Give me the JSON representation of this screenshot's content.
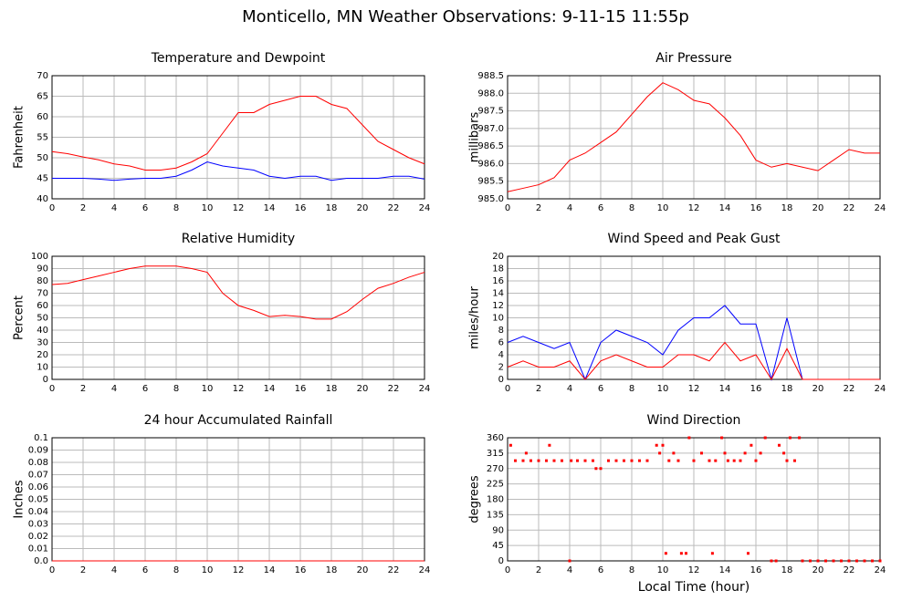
{
  "title": "Monticello, MN Weather Observations: 9-11-15 11:55p",
  "chart_data": [
    {
      "type": "line",
      "title": "Temperature and Dewpoint",
      "ylabel": "Fahrenheit",
      "x": [
        0,
        1,
        2,
        3,
        4,
        5,
        6,
        7,
        8,
        9,
        10,
        11,
        12,
        13,
        14,
        15,
        16,
        17,
        18,
        19,
        20,
        21,
        22,
        23,
        24
      ],
      "series": [
        {
          "color": "#ff0000",
          "values": [
            51.5,
            51,
            50.2,
            49.5,
            48.5,
            48,
            47,
            47,
            47.5,
            49,
            51,
            56,
            61,
            61,
            63,
            64,
            65,
            65,
            63,
            62,
            58,
            54,
            52,
            50,
            48.5
          ]
        },
        {
          "color": "#0000ff",
          "values": [
            45,
            45,
            45,
            44.8,
            44.5,
            44.8,
            45,
            45,
            45.5,
            47,
            49,
            48,
            47.5,
            47,
            45.5,
            45,
            45.5,
            45.5,
            44.5,
            45,
            45,
            45,
            45.5,
            45.5,
            44.8
          ]
        }
      ],
      "xlim": [
        0,
        24
      ],
      "xticks": [
        0,
        2,
        4,
        6,
        8,
        10,
        12,
        14,
        16,
        18,
        20,
        22,
        24
      ],
      "ylim": [
        40,
        70
      ],
      "yticks": [
        40,
        45,
        50,
        55,
        60,
        65,
        70
      ],
      "grid": true
    },
    {
      "type": "line",
      "title": "Air Pressure",
      "ylabel": "millibars",
      "x": [
        0,
        1,
        2,
        3,
        4,
        5,
        6,
        7,
        8,
        9,
        10,
        11,
        12,
        13,
        14,
        15,
        16,
        17,
        18,
        19,
        20,
        21,
        22,
        23,
        24
      ],
      "series": [
        {
          "color": "#ff0000",
          "values": [
            985.2,
            985.3,
            985.4,
            985.6,
            986.1,
            986.3,
            986.6,
            986.9,
            987.4,
            987.9,
            988.3,
            988.1,
            987.8,
            987.7,
            987.3,
            986.8,
            986.1,
            985.9,
            986.0,
            985.9,
            985.8,
            986.1,
            986.4,
            986.3,
            986.3
          ]
        }
      ],
      "xlim": [
        0,
        24
      ],
      "xticks": [
        0,
        2,
        4,
        6,
        8,
        10,
        12,
        14,
        16,
        18,
        20,
        22,
        24
      ],
      "ylim": [
        985,
        988.5
      ],
      "yticks": [
        {
          "value": 985,
          "label": "985.0"
        },
        985.5,
        {
          "value": 986,
          "label": "986.0"
        },
        986.5,
        {
          "value": 987,
          "label": "987.0"
        },
        987.5,
        {
          "value": 988,
          "label": "988.0"
        },
        988.5
      ],
      "grid": true
    },
    {
      "type": "line",
      "title": "Relative Humidity",
      "ylabel": "Percent",
      "x": [
        0,
        1,
        2,
        3,
        4,
        5,
        6,
        7,
        8,
        9,
        10,
        11,
        12,
        13,
        14,
        15,
        16,
        17,
        18,
        19,
        20,
        21,
        22,
        23,
        24
      ],
      "series": [
        {
          "color": "#ff0000",
          "values": [
            77,
            78,
            81,
            84,
            87,
            90,
            92,
            92,
            92,
            90,
            87,
            70,
            60,
            56,
            51,
            52,
            51,
            49,
            49,
            55,
            65,
            74,
            78,
            83,
            87
          ]
        }
      ],
      "xlim": [
        0,
        24
      ],
      "xticks": [
        0,
        2,
        4,
        6,
        8,
        10,
        12,
        14,
        16,
        18,
        20,
        22,
        24
      ],
      "ylim": [
        0,
        100
      ],
      "yticks": [
        0,
        10,
        20,
        30,
        40,
        50,
        60,
        70,
        80,
        90,
        100
      ],
      "grid": true
    },
    {
      "type": "line",
      "title": "Wind Speed and Peak Gust",
      "ylabel": "miles/hour",
      "x": [
        0,
        1,
        2,
        3,
        4,
        5,
        6,
        7,
        8,
        9,
        10,
        11,
        12,
        13,
        14,
        15,
        16,
        17,
        18,
        19,
        20,
        21,
        22,
        23,
        24
      ],
      "series": [
        {
          "color": "#0000ff",
          "values": [
            6,
            7,
            6,
            5,
            6,
            0,
            6,
            8,
            7,
            6,
            4,
            8,
            10,
            10,
            12,
            9,
            9,
            0,
            10,
            0,
            0,
            0,
            0,
            0,
            0
          ]
        },
        {
          "color": "#ff0000",
          "values": [
            2,
            3,
            2,
            2,
            3,
            0,
            3,
            4,
            3,
            2,
            2,
            4,
            4,
            3,
            6,
            3,
            4,
            0,
            5,
            0,
            0,
            0,
            0,
            0,
            0
          ]
        }
      ],
      "xlim": [
        0,
        24
      ],
      "xticks": [
        0,
        2,
        4,
        6,
        8,
        10,
        12,
        14,
        16,
        18,
        20,
        22,
        24
      ],
      "ylim": [
        0,
        20
      ],
      "yticks": [
        0,
        2,
        4,
        6,
        8,
        10,
        12,
        14,
        16,
        18,
        20
      ],
      "grid": true
    },
    {
      "type": "line",
      "title": "24 hour Accumulated Rainfall",
      "ylabel": "Inches",
      "x": [
        0,
        1,
        2,
        3,
        4,
        5,
        6,
        7,
        8,
        9,
        10,
        11,
        12,
        13,
        14,
        15,
        16,
        17,
        18,
        19,
        20,
        21,
        22,
        23,
        24
      ],
      "series": [
        {
          "color": "#ff0000",
          "values": [
            0,
            0,
            0,
            0,
            0,
            0,
            0,
            0,
            0,
            0,
            0,
            0,
            0,
            0,
            0,
            0,
            0,
            0,
            0,
            0,
            0,
            0,
            0,
            0,
            0
          ]
        }
      ],
      "xlim": [
        0,
        24
      ],
      "xticks": [
        0,
        2,
        4,
        6,
        8,
        10,
        12,
        14,
        16,
        18,
        20,
        22,
        24
      ],
      "ylim": [
        0,
        0.1
      ],
      "yticks": [
        {
          "value": 0,
          "label": "0.0"
        },
        0.01,
        0.02,
        0.03,
        0.04,
        0.05,
        0.06,
        0.07,
        0.08,
        0.09,
        0.1
      ],
      "grid": true
    },
    {
      "type": "scatter",
      "title": "Wind Direction",
      "ylabel": "degrees",
      "xlabel": "Local Time (hour)",
      "x": [
        0.2,
        0.5,
        1,
        1.2,
        1.5,
        2,
        2.5,
        2.7,
        3,
        3.5,
        4,
        4.1,
        4.5,
        5,
        5.5,
        5.7,
        6,
        6.5,
        7,
        7.5,
        8,
        8.5,
        9,
        9.6,
        9.8,
        10,
        10.2,
        10.4,
        10.7,
        11,
        11.2,
        11.5,
        11.7,
        12,
        12.5,
        13,
        13.2,
        13.4,
        13.8,
        14,
        14.2,
        14.6,
        15,
        15.3,
        15.5,
        15.7,
        16,
        16.3,
        16.6,
        17,
        17.3,
        17.5,
        17.8,
        18,
        18.2,
        18.5,
        18.8,
        19,
        19.5,
        20,
        20.5,
        21,
        21.5,
        22,
        22.5,
        23,
        23.5,
        24
      ],
      "series": [
        {
          "color": "#ff0000",
          "values": [
            338,
            293,
            293,
            315,
            293,
            293,
            293,
            338,
            293,
            293,
            0,
            293,
            293,
            293,
            293,
            270,
            270,
            293,
            293,
            293,
            293,
            293,
            293,
            338,
            315,
            338,
            22,
            293,
            315,
            293,
            22,
            22,
            360,
            293,
            315,
            293,
            22,
            293,
            360,
            315,
            293,
            293,
            293,
            315,
            22,
            338,
            293,
            315,
            360,
            0,
            0,
            338,
            315,
            293,
            360,
            293,
            360,
            0,
            0,
            0,
            0,
            0,
            0,
            0,
            0,
            0,
            0,
            0
          ]
        }
      ],
      "xlim": [
        0,
        24
      ],
      "xticks": [
        0,
        2,
        4,
        6,
        8,
        10,
        12,
        14,
        16,
        18,
        20,
        22,
        24
      ],
      "ylim": [
        0,
        360
      ],
      "yticks": [
        0,
        45,
        90,
        135,
        180,
        225,
        270,
        315,
        360
      ],
      "grid": true
    }
  ]
}
